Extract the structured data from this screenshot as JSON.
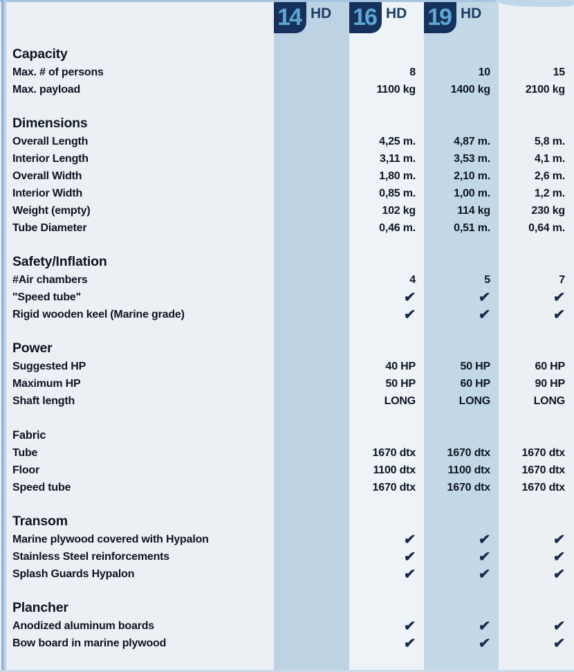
{
  "header": {
    "models": [
      {
        "number": "14",
        "label": "HD"
      },
      {
        "number": "16",
        "label": "HD"
      },
      {
        "number": "19",
        "label": "HD"
      }
    ]
  },
  "table": {
    "check_symbol": "✔",
    "sections": [
      {
        "title": "Capacity",
        "title_size": "large",
        "rows": [
          {
            "label": "Max. # of persons",
            "type": "text",
            "values": [
              "8",
              "10",
              "15"
            ]
          },
          {
            "label": "Max. payload",
            "type": "text",
            "values": [
              "1100 kg",
              "1400 kg",
              "2100 kg"
            ]
          }
        ]
      },
      {
        "title": "Dimensions",
        "title_size": "large",
        "rows": [
          {
            "label": "Overall Length",
            "type": "text",
            "values": [
              "4,25 m.",
              "4,87 m.",
              "5,8 m."
            ]
          },
          {
            "label": "Interior Length",
            "type": "text",
            "values": [
              "3,11 m.",
              "3,53 m.",
              "4,1 m."
            ]
          },
          {
            "label": "Overall Width",
            "type": "text",
            "values": [
              "1,80 m.",
              "2,10 m.",
              "2,6 m."
            ]
          },
          {
            "label": "Interior Width",
            "type": "text",
            "values": [
              "0,85 m.",
              "1,00 m.",
              "1,2 m."
            ]
          },
          {
            "label": "Weight (empty)",
            "type": "text",
            "values": [
              "102 kg",
              "114 kg",
              "230 kg"
            ]
          },
          {
            "label": "Tube Diameter",
            "type": "text",
            "values": [
              "0,46 m.",
              "0,51 m.",
              "0,64 m."
            ]
          }
        ]
      },
      {
        "title": "Safety/Inflation",
        "title_size": "large",
        "rows": [
          {
            "label": "#Air chambers",
            "type": "text",
            "values": [
              "4",
              "5",
              "7"
            ]
          },
          {
            "label": "\"Speed tube\"",
            "type": "check",
            "values": [
              true,
              true,
              true
            ]
          },
          {
            "label": "Rigid wooden keel (Marine grade)",
            "type": "check",
            "values": [
              true,
              true,
              true
            ]
          }
        ]
      },
      {
        "title": "Power",
        "title_size": "large",
        "rows": [
          {
            "label": "Suggested HP",
            "type": "text",
            "values": [
              "40 HP",
              "50 HP",
              "60 HP"
            ]
          },
          {
            "label": "Maximum HP",
            "type": "text",
            "values": [
              "50 HP",
              "60 HP",
              "90 HP"
            ]
          },
          {
            "label": "Shaft length",
            "type": "text",
            "values": [
              "LONG",
              "LONG",
              "LONG"
            ]
          }
        ]
      },
      {
        "title": "Fabric",
        "title_size": "small",
        "rows": [
          {
            "label": "Tube",
            "type": "text",
            "values": [
              "1670 dtx",
              "1670 dtx",
              "1670 dtx"
            ]
          },
          {
            "label": "Floor",
            "type": "text",
            "values": [
              "1100 dtx",
              "1100 dtx",
              "1670 dtx"
            ]
          },
          {
            "label": "Speed tube",
            "type": "text",
            "values": [
              "1670 dtx",
              "1670 dtx",
              "1670 dtx"
            ]
          }
        ]
      },
      {
        "title": "Transom",
        "title_size": "large",
        "rows": [
          {
            "label": "Marine plywood covered with Hypalon",
            "type": "check",
            "values": [
              true,
              true,
              true
            ]
          },
          {
            "label": "Stainless Steel reinforcements",
            "type": "check",
            "values": [
              true,
              true,
              true
            ]
          },
          {
            "label": "Splash Guards Hypalon",
            "type": "check",
            "values": [
              true,
              true,
              true
            ]
          }
        ]
      },
      {
        "title": "Plancher",
        "title_size": "large",
        "rows": [
          {
            "label": "Anodized aluminum boards",
            "type": "check",
            "values": [
              true,
              true,
              true
            ]
          },
          {
            "label": "Bow board in marine plywood",
            "type": "check",
            "values": [
              true,
              true,
              true
            ]
          }
        ]
      }
    ]
  },
  "colors": {
    "page_bg": "#ecf0f4",
    "band_1": "#bdd3e3",
    "band_2": "#eef3f8",
    "band_3": "#c3d8e6",
    "badge_bg": "#16325c",
    "badge_number": "#5ea6d4",
    "hd_text": "#1c3c64",
    "text": "#0d1422",
    "check": "#16294a",
    "accent_strip": "#a5c4e0"
  }
}
